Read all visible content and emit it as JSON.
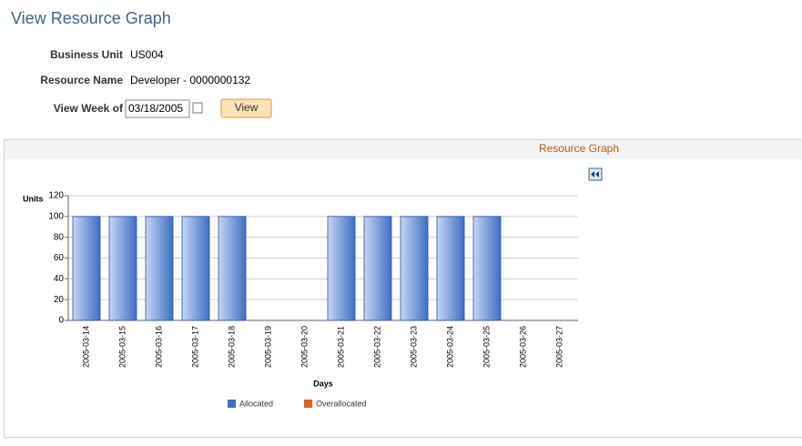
{
  "page": {
    "title": "View Resource Graph",
    "fields": [
      {
        "label": "Business Unit",
        "value": "US004"
      },
      {
        "label": "Resource Name",
        "value": "Developer - 0000000132"
      }
    ],
    "week_label": "View Week of",
    "week_value": "03/18/2005",
    "button": "View",
    "section_title": "Resource Graph"
  },
  "chart_data": {
    "type": "bar",
    "y_label": "Units",
    "x_label": "Days",
    "categories": [
      "2005-03-14",
      "2005-03-15",
      "2005-03-16",
      "2005-03-17",
      "2005-03-18",
      "2005-03-19",
      "2005-03-20",
      "2005-03-21",
      "2005-03-22",
      "2005-03-23",
      "2005-03-24",
      "2005-03-25",
      "2005-03-26",
      "2005-03-27"
    ],
    "series": [
      {
        "name": "Allocated",
        "color": "#3f6fc4",
        "values": [
          100,
          100,
          100,
          100,
          100,
          0,
          0,
          100,
          100,
          100,
          100,
          100,
          0,
          0
        ]
      },
      {
        "name": "Overallocated",
        "color": "#e0602a",
        "values": [
          0,
          0,
          0,
          0,
          0,
          0,
          0,
          0,
          0,
          0,
          0,
          0,
          0,
          0
        ]
      }
    ],
    "ylim": [
      0,
      120
    ],
    "yticks": [
      0,
      20,
      40,
      60,
      80,
      100,
      120
    ],
    "grid": true
  }
}
